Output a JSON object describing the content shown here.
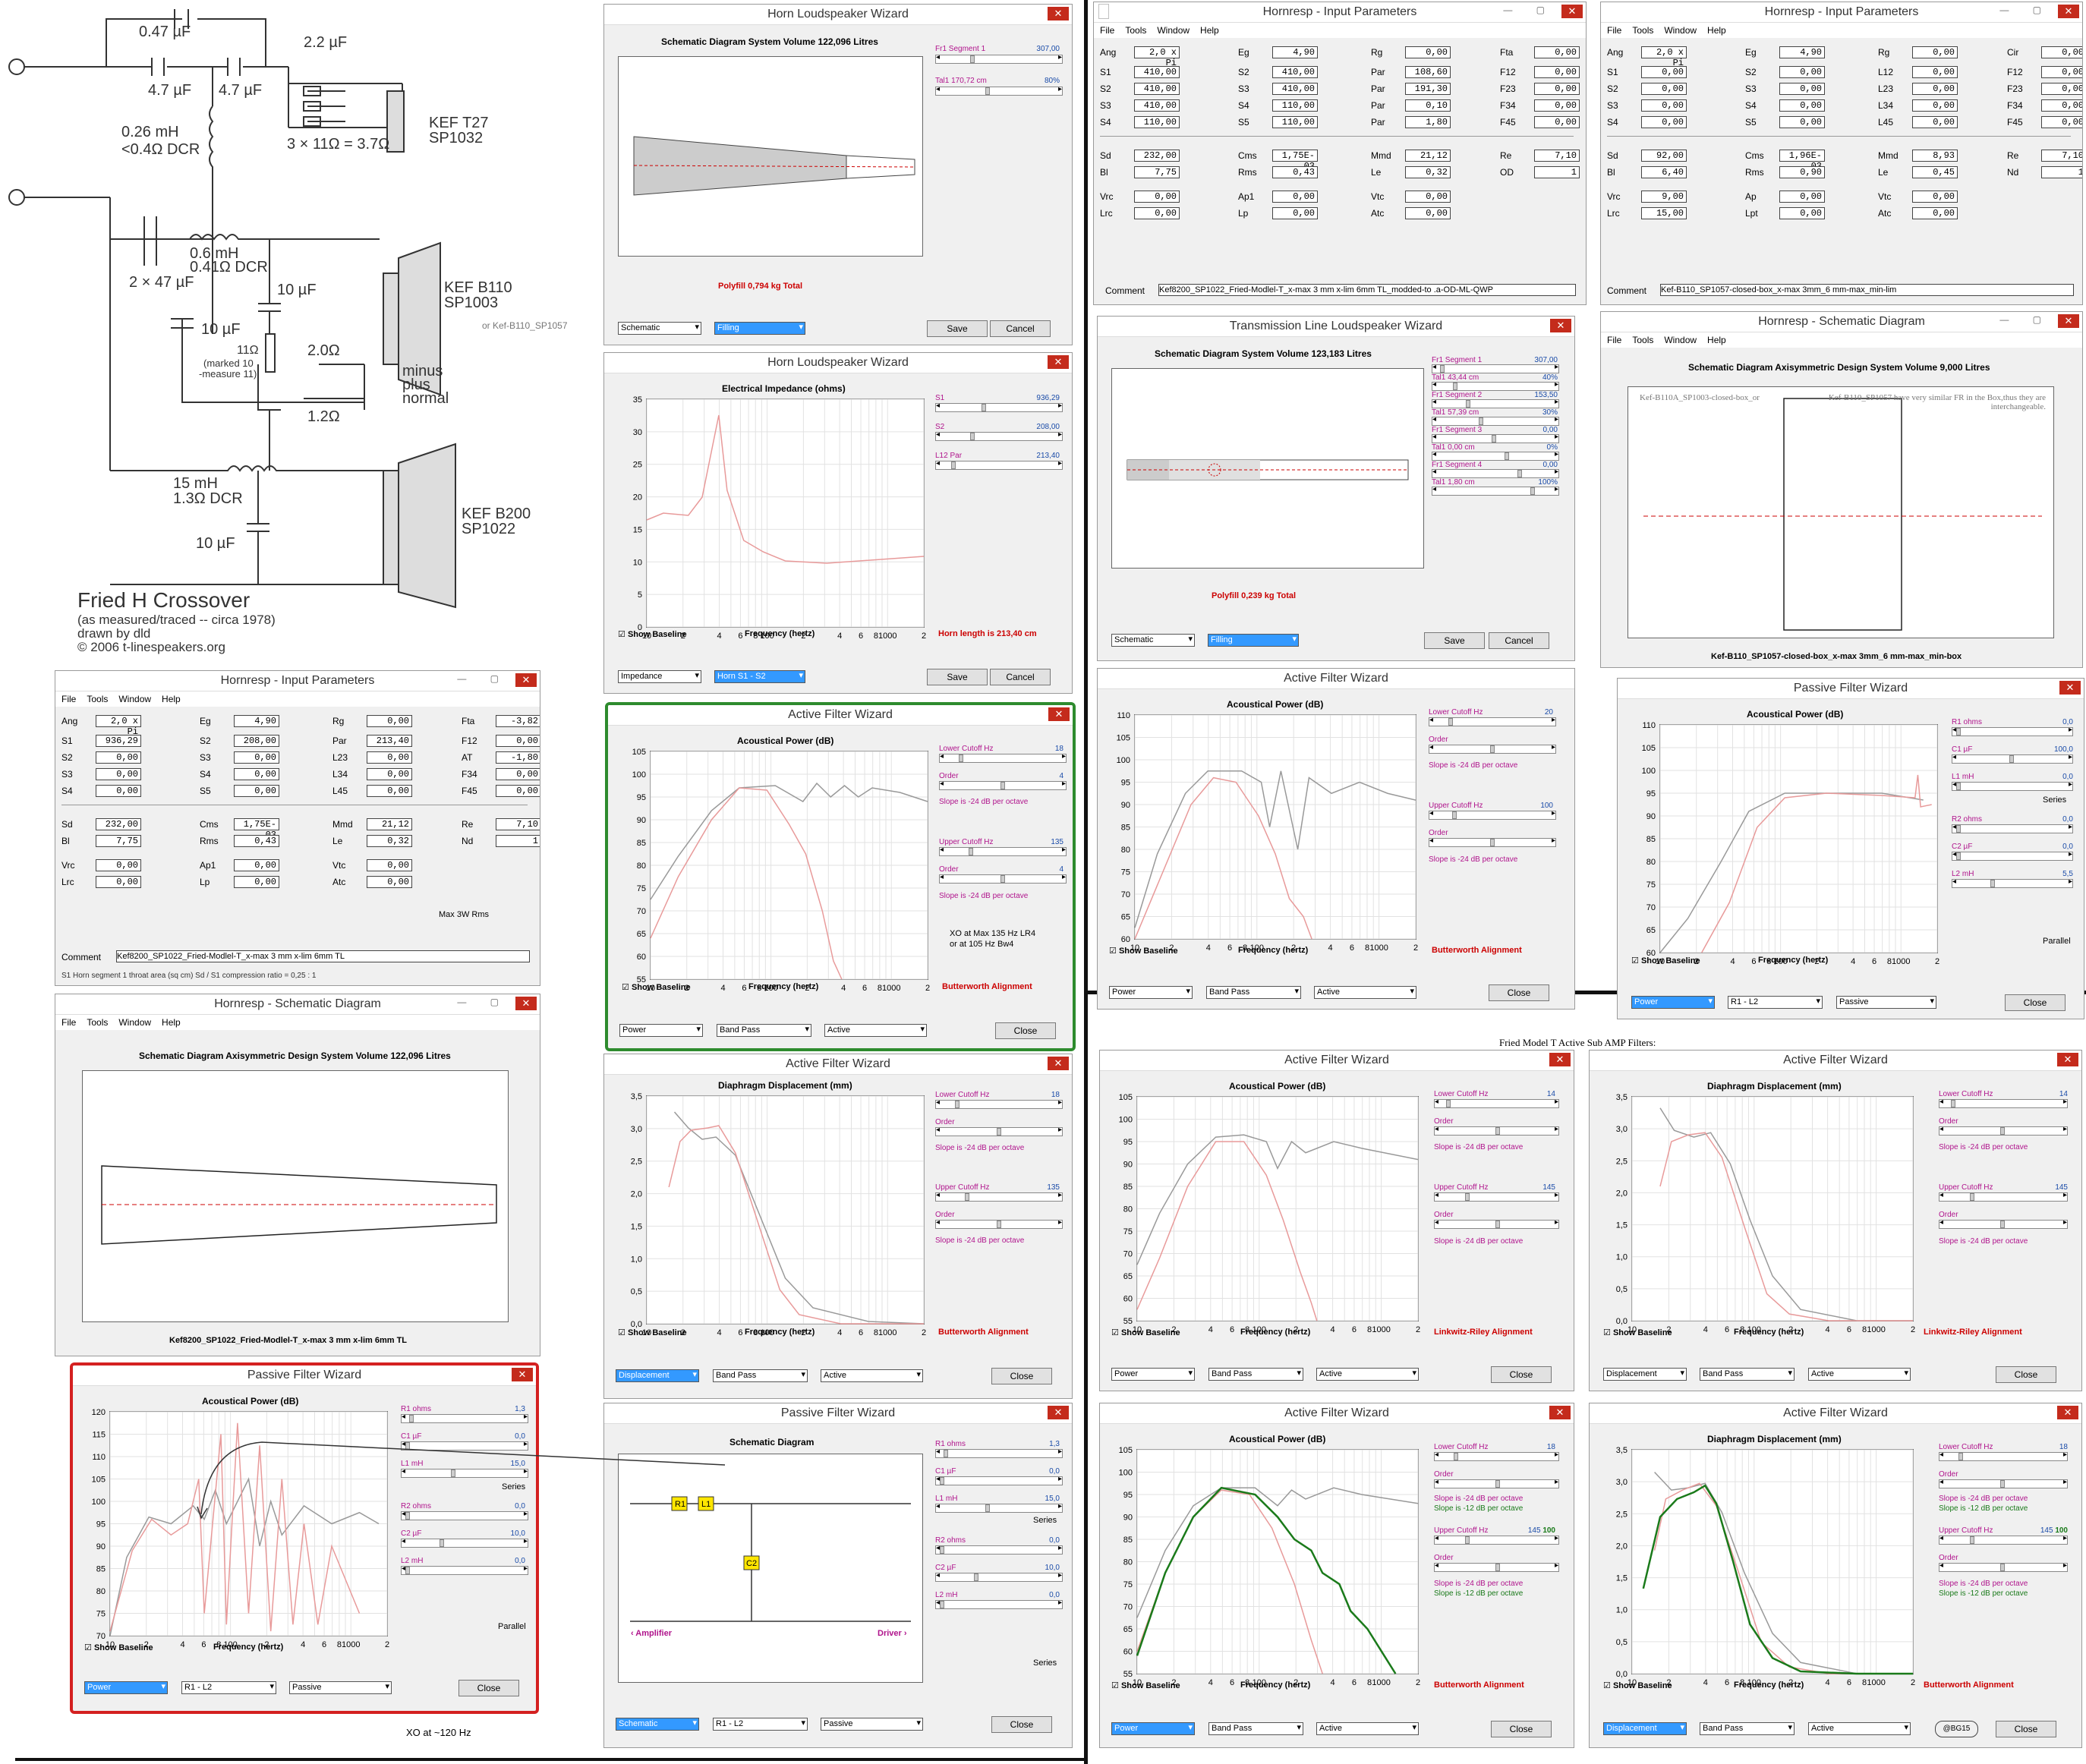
{
  "crossover": {
    "caps": [
      "0.47 µF",
      "4.7 µF",
      "4.7 µF",
      "2.2 µF"
    ],
    "ind1": "0.26 mH",
    "ind1_dcr": "<0.4Ω DCR",
    "res1": "3 × 11Ω = 3.7Ω",
    "t27": "KEF T27",
    "t27_sp": "SP1032",
    "ind2": "0.6 mH",
    "ind2_dcr": "0.41Ω DCR",
    "cap2": "2 × 47 µF",
    "cap3": "10 µF",
    "cap4": "10 µF",
    "r11": "11Ω",
    "r11_note1": "(marked 10",
    "r11_note2": "-measure 11)",
    "r20": "2.0Ω",
    "r12": "1.2Ω",
    "b110": "KEF B110",
    "b110_sp": "SP1003",
    "b110_alt": "or Kef-B110_SP1057",
    "sw1": "minus",
    "sw2": "plus",
    "sw3": "normal",
    "ind3": "15 mH",
    "ind3_dcr": "1.3Ω DCR",
    "cap5": "10 µF",
    "b200": "KEF B200",
    "b200_sp": "SP1022",
    "title": "Fried H Crossover",
    "sub1": "(as measured/traced -- circa 1978)",
    "sub2": "drawn by dld",
    "sub3": "© 2006 t-linespeakers.org"
  },
  "ui": {
    "file": "File",
    "tools": "Tools",
    "window": "Window",
    "help": "Help",
    "close": "Close",
    "save": "Save",
    "cancel": "Cancel",
    "show_baseline": "Show Baseline",
    "freq_axis": "Frequency (hertz)",
    "slope24": "Slope is -24 dB per octave",
    "slope12": "Slope is -12 dB per octave",
    "series": "Series",
    "parallel": "Parallel"
  },
  "windows": {
    "horn1": {
      "title": "Horn Loudspeaker Wizard",
      "plot_title": "Schematic Diagram   System Volume 122,096 Litres",
      "s1": "Fr1  Segment 1",
      "s1v": "307,00",
      "s2": "Tal1  170,72 cm",
      "s2v": "80%",
      "polyfill": "Polyfill   0,794 kg   Total",
      "c1": "Schematic",
      "c2": "Filling"
    },
    "horn2": {
      "title": "Horn Loudspeaker Wizard",
      "plot_title": "Electrical Impedance (ohms)",
      "s1": "S1",
      "s1v": "936,29",
      "s2": "S2",
      "s2v": "208,00",
      "s3": "L12  Par",
      "s3v": "213,40",
      "horn_len": "Horn length is 213,40 cm",
      "c1": "Impedance",
      "c2": "Horn S1 - S2"
    },
    "active1": {
      "title": "Active Filter Wizard",
      "plot_title": "Acoustical Power (dB)",
      "lc": "Lower Cutoff  Hz",
      "lcv": "18",
      "ord": "Order",
      "ordv": "4",
      "uc": "Upper Cutoff  Hz",
      "ucv": "135",
      "note1": "XO at Max 135 Hz LR4",
      "note2": "or at 105 Hz Bw4",
      "align": "Butterworth Alignment",
      "c1": "Power",
      "c2": "Band Pass",
      "c3": "Active"
    },
    "active2": {
      "title": "Active Filter Wizard",
      "plot_title": "Diaphragm Displacement (mm)",
      "lcv": "18",
      "ucv": "135",
      "align": "Butterworth Alignment",
      "c1": "Displacement",
      "c2": "Band Pass",
      "c3": "Active"
    },
    "passive1": {
      "title": "Passive Filter Wizard",
      "plot_title": "Schematic Diagram",
      "r1": "R1  ohms",
      "r1v": "1,3",
      "c1": "C1  µF",
      "c1v": "0,0",
      "l1": "L1  mH",
      "l1v": "15,0",
      "r2": "R2  ohms",
      "r2v": "0,0",
      "c2": "C2  µF",
      "c2v": "10,0",
      "l2": "L2  mH",
      "l2v": "0,0",
      "amp": "‹  Amplifier",
      "drv": "Driver  ›",
      "cb1": "Schematic",
      "cb2": "R1 - L2",
      "cb3": "Passive"
    },
    "passive2": {
      "title": "Passive Filter Wizard",
      "plot_title": "Acoustical Power (dB)",
      "r1v": "1,3",
      "c1v": "0,0",
      "l1v": "15,0",
      "r2v": "0,0",
      "c2v": "10,0",
      "l2v": "0,0",
      "cb1": "Power",
      "cb2": "R1 - L2",
      "cb3": "Passive",
      "xo": "XO at ~120 Hz"
    },
    "input1": {
      "title": "Hornresp - Input Parameters",
      "status": "S1   Horn segment 1 throat area (sq cm)   Sd / S1 compression ratio = 0,25 : 1",
      "comment": "Kef8200_SP1022_Fried-Modlel-T_x-max 3 mm x-lim 6mm TL",
      "maxw": "Max 3W Rms"
    },
    "schem1": {
      "title": "Hornresp - Schematic Diagram",
      "plot_title": "Schematic Diagram   Axisymmetric Design   System Volume 122,096 Litres",
      "caption": "Kef8200_SP1022_Fried-Modlel-T_x-max 3 mm x-lim 6mm TL"
    },
    "input2": {
      "title": "Hornresp - Input Parameters",
      "comment": "Kef8200_SP1022_Fried-Modlel-T_x-max 3 mm x-lim 6mm TL_modded-to .a-OD-ML-QWP"
    },
    "input3": {
      "title": "Hornresp - Input Parameters",
      "comment": "Kef-B110_SP1057-closed-box_x-max 3mm_6 mm-max_min-lim"
    },
    "tl": {
      "title": "Transmission Line Loudspeaker Wizard",
      "plot_title": "Schematic Diagram   System Volume 123,183 Litres",
      "polyfill": "Polyfill   0,239 kg   Total",
      "segs": [
        [
          "Fr1  Segment 1",
          "307,00"
        ],
        [
          "Tal1  43,44 cm",
          "40%"
        ],
        [
          "Fr1  Segment 2",
          "153,50"
        ],
        [
          "Tal1  57,39 cm",
          "30%"
        ],
        [
          "Fr1  Segment 3",
          "0,00"
        ],
        [
          "Tal1  0,00 cm",
          "0%"
        ],
        [
          "Fr1  Segment 4",
          "0,00"
        ],
        [
          "Tal1  1,80 cm",
          "100%"
        ]
      ],
      "c1": "Schematic",
      "c2": "Filling"
    },
    "schem2": {
      "title": "Hornresp - Schematic Diagram",
      "plot_title": "Schematic Diagram   Axisymmetric Design   System Volume 9,000 Litres",
      "note_l": "Kef-B110A_SP1003-closed-box_or",
      "note_r": "Kef-B110_SP1057 have very similar FR in the Box,thus they are interchangeable.",
      "caption": "Kef-B110_SP1057-closed-box_x-max 3mm_6 mm-max_min-box"
    },
    "active3": {
      "title": "Active Filter Wizard",
      "plot_title": "Acoustical Power (dB)",
      "lcv": "20",
      "ucv": "100",
      "align": "Butterworth Alignment",
      "c1": "Power",
      "c2": "Band Pass",
      "c3": "Active"
    },
    "passive3": {
      "title": "Passive Filter Wizard",
      "plot_title": "Acoustical Power (dB)",
      "r1v": "0,0",
      "c1v": "100,0",
      "l1v": "0,0",
      "r2v": "0,0",
      "c2v": "0,0",
      "l2v": "5,5",
      "cb1": "Power",
      "cb2": "R1 - L2",
      "cb3": "Passive"
    },
    "heading": "Fried Model T Active Sub AMP Filters:",
    "active4": {
      "title": "Active Filter Wizard",
      "plot_title": "Acoustical Power (dB)",
      "lcv": "14",
      "ucv": "145",
      "align": "Linkwitz-Riley Alignment",
      "c1": "Power",
      "c2": "Band Pass",
      "c3": "Active"
    },
    "active5": {
      "title": "Active Filter Wizard",
      "plot_title": "Diaphragm Displacement (mm)",
      "lcv": "14",
      "ucv": "145",
      "align": "Linkwitz-Riley Alignment",
      "c1": "Displacement",
      "c2": "Band Pass",
      "c3": "Active"
    },
    "active6": {
      "title": "Active Filter Wizard",
      "plot_title": "Acoustical Power (dB)",
      "lcv": "18",
      "ucv": "145",
      "ucv2": "100",
      "align": "Butterworth Alignment",
      "c1": "Power",
      "c2": "Band Pass",
      "c3": "Active"
    },
    "active7": {
      "title": "Active Filter Wizard",
      "plot_title": "Diaphragm Displacement (mm)",
      "lcv": "18",
      "ucv": "145",
      "ucv2": "100",
      "align": "Butterworth Alignment",
      "c1": "Displacement",
      "c2": "Band Pass",
      "c3": "Active",
      "badge": "@BG15"
    }
  },
  "inputs": {
    "input1": [
      [
        "Ang",
        "2,0 x Pi",
        "Eg",
        "4,90",
        "Rg",
        "0,00",
        "Fta",
        "-3,82"
      ],
      [
        "S1",
        "936,29",
        "S2",
        "208,00",
        "Par",
        "213,40",
        "F12",
        "0,00"
      ],
      [
        "S2",
        "0,00",
        "S3",
        "0,00",
        "L23",
        "0,00",
        "AT",
        "-1,80"
      ],
      [
        "S3",
        "0,00",
        "S4",
        "0,00",
        "L34",
        "0,00",
        "F34",
        "0,00"
      ],
      [
        "S4",
        "0,00",
        "S5",
        "0,00",
        "L45",
        "0,00",
        "F45",
        "0,00"
      ],
      [
        "Sd",
        "232,00",
        "Cms",
        "1,75E-03",
        "Mmd",
        "21,12",
        "Re",
        "7,10"
      ],
      [
        "Bl",
        "7,75",
        "Rms",
        "0,43",
        "Le",
        "0,32",
        "Nd",
        "1"
      ],
      [
        "Vrc",
        "0,00",
        "Ap1",
        "0,00",
        "Vtc",
        "0,00",
        "",
        ""
      ],
      [
        "Lrc",
        "0,00",
        "Lp",
        "0,00",
        "Atc",
        "0,00",
        "",
        ""
      ]
    ],
    "input2": [
      [
        "Ang",
        "2,0 x Pi",
        "Eg",
        "4,90",
        "Rg",
        "0,00",
        "Fta",
        "0,00"
      ],
      [
        "S1",
        "410,00",
        "S2",
        "410,00",
        "Par",
        "108,60",
        "F12",
        "0,00"
      ],
      [
        "S2",
        "410,00",
        "S3",
        "410,00",
        "Par",
        "191,30",
        "F23",
        "0,00"
      ],
      [
        "S3",
        "410,00",
        "S4",
        "110,00",
        "Par",
        "0,10",
        "F34",
        "0,00"
      ],
      [
        "S4",
        "110,00",
        "S5",
        "110,00",
        "Par",
        "1,80",
        "F45",
        "0,00"
      ],
      [
        "Sd",
        "232,00",
        "Cms",
        "1,75E-03",
        "Mmd",
        "21,12",
        "Re",
        "7,10"
      ],
      [
        "Bl",
        "7,75",
        "Rms",
        "0,43",
        "Le",
        "0,32",
        "OD",
        "1"
      ],
      [
        "Vrc",
        "0,00",
        "Ap1",
        "0,00",
        "Vtc",
        "0,00",
        "",
        ""
      ],
      [
        "Lrc",
        "0,00",
        "Lp",
        "0,00",
        "Atc",
        "0,00",
        "",
        ""
      ]
    ],
    "input3": [
      [
        "Ang",
        "2,0 x Pi",
        "Eg",
        "4,90",
        "Rg",
        "0,00",
        "Cir",
        "0,00"
      ],
      [
        "S1",
        "0,00",
        "S2",
        "0,00",
        "L12",
        "0,00",
        "F12",
        "0,00"
      ],
      [
        "S2",
        "0,00",
        "S3",
        "0,00",
        "L23",
        "0,00",
        "F23",
        "0,00"
      ],
      [
        "S3",
        "0,00",
        "S4",
        "0,00",
        "L34",
        "0,00",
        "F34",
        "0,00"
      ],
      [
        "S4",
        "0,00",
        "S5",
        "0,00",
        "L45",
        "0,00",
        "F45",
        "0,00"
      ],
      [
        "Sd",
        "92,00",
        "Cms",
        "1,96E-03",
        "Mmd",
        "8,93",
        "Re",
        "7,10"
      ],
      [
        "Bl",
        "6,40",
        "Rms",
        "0,90",
        "Le",
        "0,45",
        "Nd",
        "1"
      ],
      [
        "Vrc",
        "9,00",
        "Ap",
        "0,00",
        "Vtc",
        "0,00",
        "",
        ""
      ],
      [
        "Lrc",
        "15,00",
        "Lpt",
        "0,00",
        "Atc",
        "0,00",
        "",
        ""
      ]
    ]
  },
  "axes": {
    "x": [
      "10",
      "2",
      "4",
      "6",
      "8",
      "100",
      "2",
      "4",
      "6",
      "8",
      "1000",
      "2"
    ],
    "power": [
      "105",
      "100",
      "95",
      "90",
      "85",
      "80",
      "75",
      "70",
      "65",
      "60",
      "55"
    ],
    "power110": [
      "110",
      "105",
      "100",
      "95",
      "90",
      "85",
      "80",
      "75",
      "70",
      "65",
      "60"
    ],
    "power120": [
      "120",
      "115",
      "110",
      "105",
      "100",
      "95",
      "90",
      "85",
      "80",
      "75",
      "70"
    ],
    "imp": [
      "35",
      "30",
      "25",
      "20",
      "15",
      "10",
      "5",
      "0"
    ],
    "disp": [
      "3,5",
      "3,0",
      "2,5",
      "2,0",
      "1,5",
      "1,0",
      "0,5",
      "0,0"
    ]
  },
  "colors": {
    "pink": "#e89a9a",
    "gray": "#999999",
    "green": "#1a7a1a",
    "red": "#cc0000",
    "magenta": "#b0148c",
    "green_frame": "#2e8b2e",
    "red_frame": "#d42020"
  }
}
